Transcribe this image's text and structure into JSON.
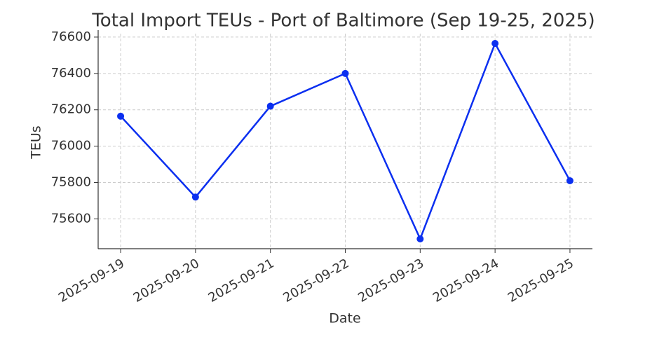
{
  "chart_data": {
    "type": "line",
    "title": "Total Import TEUs - Port of Baltimore (Sep 19-25, 2025)",
    "x_label": "Date",
    "y_label": "TEUs",
    "categories": [
      "2025-09-19",
      "2025-09-20",
      "2025-09-21",
      "2025-09-22",
      "2025-09-23",
      "2025-09-24",
      "2025-09-25"
    ],
    "series": [
      {
        "name": "Total Import TEUs",
        "color": "#0b2ff0",
        "values": [
          76165,
          75720,
          76220,
          76400,
          75490,
          76565,
          75810
        ]
      }
    ],
    "ylim": [
      75436,
      76619
    ],
    "yticks": [
      75600,
      75800,
      76000,
      76200,
      76400,
      76600
    ],
    "grid": true
  }
}
